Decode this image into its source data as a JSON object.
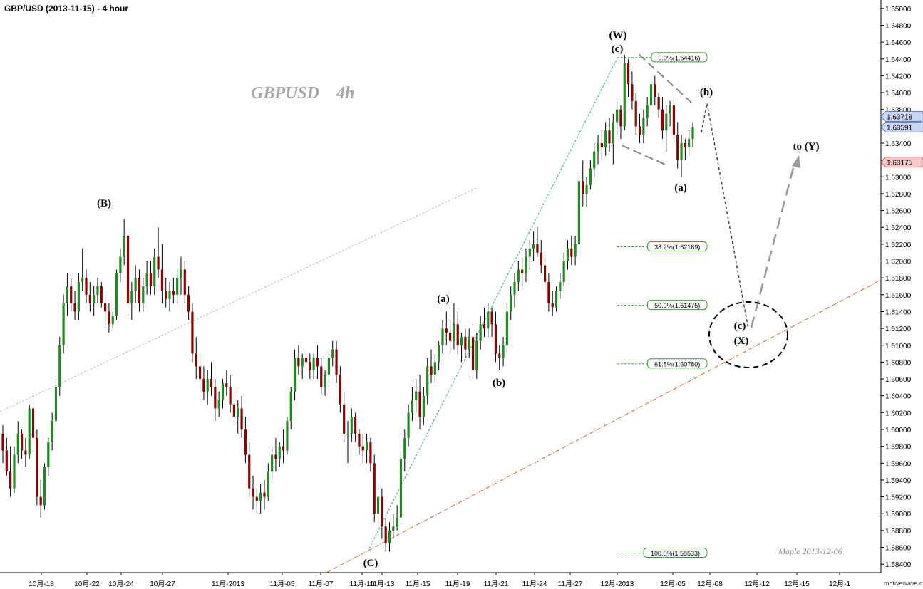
{
  "title": "GBP/USD (2013-11-15) - 4 hour",
  "watermark": "GBPUSD    4h",
  "signature": "Maple  2013-12-06",
  "brand": "motivewave.com",
  "colors": {
    "up": "#1f8c1f",
    "down": "#8b0000",
    "fib": "#2e9e2e",
    "channel": "#c8642a",
    "wick": "#000000"
  },
  "chart_data": {
    "type": "candlestick",
    "title": "GBP/USD (2013-11-15) - 4 hour",
    "y_axis": {
      "side": "right",
      "min": 1.583,
      "max": 1.651,
      "ticks": [
        "1.65000",
        "1.64800",
        "1.64600",
        "1.64400",
        "1.64200",
        "1.64000",
        "1.63800",
        "1.63600",
        "1.63400",
        "1.63200",
        "1.63000",
        "1.62800",
        "1.62600",
        "1.62400",
        "1.62200",
        "1.62000",
        "1.61800",
        "1.61600",
        "1.61400",
        "1.61200",
        "1.61000",
        "1.60800",
        "1.60600",
        "1.60400",
        "1.60200",
        "1.60000",
        "1.59800",
        "1.59600",
        "1.59400",
        "1.59200",
        "1.59000",
        "1.58800",
        "1.58600",
        "1.58400"
      ]
    },
    "x_axis": {
      "ticks": [
        "10月-18",
        "10月-22",
        "10月-24",
        "10月-27",
        "11月-2013",
        "11月-05",
        "11月-07",
        "11月-10",
        "11月-13",
        "11月-15",
        "11月-19",
        "11月-21",
        "11月-24",
        "11月-27",
        "12月-2013",
        "12月-05",
        "12月-08",
        "12月-12",
        "12月-15",
        "12月-1"
      ]
    },
    "price_tags": [
      {
        "value": "1.63718",
        "price": 1.63718,
        "style": "blue"
      },
      {
        "value": "1.63591",
        "price": 1.63591,
        "style": "blue"
      },
      {
        "value": "1.63175",
        "price": 1.63175,
        "style": "red"
      }
    ],
    "fibonacci": [
      {
        "label": "0.0%(1.64416)",
        "price": 1.64416
      },
      {
        "label": "38.2%(1.62169)",
        "price": 1.62169
      },
      {
        "label": "50.0%(1.61475)",
        "price": 1.61475
      },
      {
        "label": "61.8%(1.60780)",
        "price": 1.6078
      },
      {
        "label": "100.0%(1.58533)",
        "price": 1.58533
      }
    ],
    "wave_labels": [
      {
        "text": "(B)",
        "date": "10月-22",
        "price": 1.6268
      },
      {
        "text": "(C)",
        "date": "11月-13",
        "price": 1.5842
      },
      {
        "text": "(a)",
        "date": "11月-19",
        "price": 1.6157
      },
      {
        "text": "(b)",
        "date": "11月-21",
        "price": 1.6057
      },
      {
        "text": "(W)",
        "date": "12月-2013",
        "price": 1.6479
      },
      {
        "text": "(c)",
        "date": "12月-2013",
        "price": 1.6458
      },
      {
        "text": "(b)",
        "date": "12月-08",
        "price": 1.64
      },
      {
        "text": "(a)",
        "date": "12月-05",
        "price": 1.629
      },
      {
        "text": "(c)",
        "date": "12月-12",
        "price": 1.6124
      },
      {
        "text": "(X)",
        "date": "12月-12",
        "price": 1.6103
      },
      {
        "text": "to (Y)",
        "date": "12月-15",
        "price": 1.6337
      }
    ],
    "candles": [
      [
        1.5995,
        1.6005,
        1.596,
        1.5975
      ],
      [
        1.5975,
        1.599,
        1.5945,
        1.595
      ],
      [
        1.595,
        1.598,
        1.592,
        1.593
      ],
      [
        1.593,
        1.598,
        1.5925,
        1.597
      ],
      [
        1.597,
        1.601,
        1.596,
        1.5995
      ],
      [
        1.5995,
        1.6,
        1.5965,
        1.5975
      ],
      [
        1.5975,
        1.599,
        1.5955,
        1.597
      ],
      [
        1.597,
        1.603,
        1.5965,
        1.6025
      ],
      [
        1.6025,
        1.604,
        1.598,
        1.599
      ],
      [
        1.599,
        1.6,
        1.591,
        1.592
      ],
      [
        1.592,
        1.594,
        1.5895,
        1.591
      ],
      [
        1.591,
        1.596,
        1.5905,
        1.5955
      ],
      [
        1.5955,
        1.599,
        1.5945,
        1.5985
      ],
      [
        1.5985,
        1.602,
        1.5975,
        1.601
      ],
      [
        1.601,
        1.606,
        1.6,
        1.605
      ],
      [
        1.605,
        1.611,
        1.604,
        1.61
      ],
      [
        1.61,
        1.616,
        1.609,
        1.615
      ],
      [
        1.615,
        1.6185,
        1.6135,
        1.617
      ],
      [
        1.617,
        1.618,
        1.614,
        1.615
      ],
      [
        1.615,
        1.6165,
        1.613,
        1.614
      ],
      [
        1.614,
        1.6185,
        1.613,
        1.6175
      ],
      [
        1.6175,
        1.6215,
        1.6165,
        1.618
      ],
      [
        1.618,
        1.619,
        1.615,
        1.616
      ],
      [
        1.616,
        1.6175,
        1.614,
        1.615
      ],
      [
        1.615,
        1.617,
        1.6135,
        1.616
      ],
      [
        1.616,
        1.618,
        1.615,
        1.617
      ],
      [
        1.617,
        1.6175,
        1.6145,
        1.615
      ],
      [
        1.615,
        1.616,
        1.612,
        1.614
      ],
      [
        1.614,
        1.615,
        1.6115,
        1.6125
      ],
      [
        1.6125,
        1.614,
        1.612,
        1.6135
      ],
      [
        1.6135,
        1.619,
        1.613,
        1.6185
      ],
      [
        1.6185,
        1.6215,
        1.6175,
        1.6205
      ],
      [
        1.6205,
        1.625,
        1.6195,
        1.623
      ],
      [
        1.623,
        1.6235,
        1.6135,
        1.615
      ],
      [
        1.615,
        1.6175,
        1.613,
        1.6165
      ],
      [
        1.6165,
        1.6195,
        1.615,
        1.618
      ],
      [
        1.618,
        1.619,
        1.614,
        1.615
      ],
      [
        1.615,
        1.618,
        1.614,
        1.617
      ],
      [
        1.617,
        1.62,
        1.616,
        1.6185
      ],
      [
        1.6185,
        1.62,
        1.616,
        1.617
      ],
      [
        1.617,
        1.6215,
        1.616,
        1.6205
      ],
      [
        1.6205,
        1.624,
        1.618,
        1.619
      ],
      [
        1.619,
        1.622,
        1.615,
        1.6165
      ],
      [
        1.6165,
        1.618,
        1.6145,
        1.6155
      ],
      [
        1.6155,
        1.6175,
        1.614,
        1.6165
      ],
      [
        1.6165,
        1.618,
        1.615,
        1.616
      ],
      [
        1.616,
        1.619,
        1.615,
        1.618
      ],
      [
        1.618,
        1.6205,
        1.616,
        1.619
      ],
      [
        1.619,
        1.62,
        1.615,
        1.616
      ],
      [
        1.616,
        1.617,
        1.613,
        1.614
      ],
      [
        1.614,
        1.615,
        1.608,
        1.609
      ],
      [
        1.609,
        1.611,
        1.606,
        1.6075
      ],
      [
        1.6075,
        1.609,
        1.6045,
        1.606
      ],
      [
        1.606,
        1.6075,
        1.6035,
        1.6045
      ],
      [
        1.6045,
        1.607,
        1.603,
        1.606
      ],
      [
        1.606,
        1.608,
        1.604,
        1.605
      ],
      [
        1.605,
        1.606,
        1.601,
        1.6025
      ],
      [
        1.6025,
        1.6045,
        1.6015,
        1.6035
      ],
      [
        1.6035,
        1.606,
        1.6025,
        1.6055
      ],
      [
        1.6055,
        1.607,
        1.604,
        1.605
      ],
      [
        1.605,
        1.6065,
        1.602,
        1.603
      ],
      [
        1.603,
        1.6045,
        1.6005,
        1.6015
      ],
      [
        1.6015,
        1.6035,
        1.5995,
        1.6025
      ],
      [
        1.6025,
        1.604,
        1.599,
        1.6
      ],
      [
        1.6,
        1.6015,
        1.596,
        1.597
      ],
      [
        1.597,
        1.5985,
        1.592,
        1.593
      ],
      [
        1.593,
        1.5945,
        1.5905,
        1.592
      ],
      [
        1.592,
        1.593,
        1.59,
        1.5915
      ],
      [
        1.5915,
        1.5935,
        1.59,
        1.5925
      ],
      [
        1.5925,
        1.594,
        1.5905,
        1.592
      ],
      [
        1.592,
        1.596,
        1.5915,
        1.595
      ],
      [
        1.595,
        1.598,
        1.594,
        1.597
      ],
      [
        1.597,
        1.599,
        1.595,
        1.5965
      ],
      [
        1.5965,
        1.5985,
        1.5955,
        1.598
      ],
      [
        1.598,
        1.6,
        1.596,
        1.5975
      ],
      [
        1.5975,
        1.6015,
        1.597,
        1.601
      ],
      [
        1.601,
        1.605,
        1.6,
        1.6045
      ],
      [
        1.6045,
        1.6095,
        1.6035,
        1.6085
      ],
      [
        1.6085,
        1.61,
        1.6065,
        1.6075
      ],
      [
        1.6075,
        1.609,
        1.606,
        1.6085
      ],
      [
        1.6085,
        1.6095,
        1.607,
        1.608
      ],
      [
        1.608,
        1.609,
        1.606,
        1.607
      ],
      [
        1.607,
        1.609,
        1.606,
        1.6085
      ],
      [
        1.6085,
        1.61,
        1.606,
        1.6075
      ],
      [
        1.6075,
        1.6085,
        1.604,
        1.605
      ],
      [
        1.605,
        1.607,
        1.604,
        1.6065
      ],
      [
        1.6065,
        1.6095,
        1.6055,
        1.6085
      ],
      [
        1.6085,
        1.6105,
        1.6075,
        1.6095
      ],
      [
        1.6095,
        1.6105,
        1.6055,
        1.6065
      ],
      [
        1.6065,
        1.6075,
        1.602,
        1.603
      ],
      [
        1.603,
        1.6045,
        1.5985,
        1.5995
      ],
      [
        1.5995,
        1.601,
        1.596,
        1.5995
      ],
      [
        1.5995,
        1.6025,
        1.5985,
        1.6015
      ],
      [
        1.6015,
        1.602,
        1.5985,
        1.5995
      ],
      [
        1.5995,
        1.6,
        1.597,
        1.598
      ],
      [
        1.598,
        1.5995,
        1.596,
        1.5975
      ],
      [
        1.5975,
        1.5995,
        1.596,
        1.5985
      ],
      [
        1.5985,
        1.599,
        1.595,
        1.596
      ],
      [
        1.596,
        1.597,
        1.589,
        1.59
      ],
      [
        1.59,
        1.5935,
        1.588,
        1.592
      ],
      [
        1.592,
        1.593,
        1.587,
        1.5885
      ],
      [
        1.5885,
        1.5895,
        1.5855,
        1.5865
      ],
      [
        1.5865,
        1.589,
        1.5855,
        1.588
      ],
      [
        1.588,
        1.59,
        1.587,
        1.5885
      ],
      [
        1.5885,
        1.591,
        1.588,
        1.5895
      ],
      [
        1.5895,
        1.5975,
        1.589,
        1.5965
      ],
      [
        1.5965,
        1.6,
        1.595,
        1.599
      ],
      [
        1.599,
        1.603,
        1.598,
        1.602
      ],
      [
        1.602,
        1.605,
        1.601,
        1.6035
      ],
      [
        1.6035,
        1.606,
        1.602,
        1.6045
      ],
      [
        1.6045,
        1.6065,
        1.6,
        1.6015
      ],
      [
        1.6015,
        1.605,
        1.6005,
        1.604
      ],
      [
        1.604,
        1.6085,
        1.603,
        1.6075
      ],
      [
        1.6075,
        1.6095,
        1.6055,
        1.6065
      ],
      [
        1.6065,
        1.609,
        1.6055,
        1.608
      ],
      [
        1.608,
        1.6105,
        1.607,
        1.61
      ],
      [
        1.61,
        1.613,
        1.609,
        1.612
      ],
      [
        1.612,
        1.614,
        1.61,
        1.6115
      ],
      [
        1.6115,
        1.613,
        1.609,
        1.6105
      ],
      [
        1.6105,
        1.615,
        1.6095,
        1.6125
      ],
      [
        1.6125,
        1.614,
        1.609,
        1.61
      ],
      [
        1.61,
        1.6115,
        1.608,
        1.611
      ],
      [
        1.611,
        1.612,
        1.6085,
        1.6095
      ],
      [
        1.6095,
        1.612,
        1.6085,
        1.611
      ],
      [
        1.611,
        1.6125,
        1.606,
        1.607
      ],
      [
        1.607,
        1.6115,
        1.606,
        1.6105
      ],
      [
        1.6105,
        1.6135,
        1.6095,
        1.6125
      ],
      [
        1.6125,
        1.6145,
        1.611,
        1.612
      ],
      [
        1.612,
        1.615,
        1.611,
        1.614
      ],
      [
        1.614,
        1.6145,
        1.611,
        1.6125
      ],
      [
        1.6125,
        1.614,
        1.608,
        1.609
      ],
      [
        1.609,
        1.61,
        1.607,
        1.6085
      ],
      [
        1.6085,
        1.611,
        1.6075,
        1.61
      ],
      [
        1.61,
        1.615,
        1.609,
        1.614
      ],
      [
        1.614,
        1.617,
        1.613,
        1.616
      ],
      [
        1.616,
        1.6185,
        1.6145,
        1.6175
      ],
      [
        1.6175,
        1.62,
        1.6165,
        1.619
      ],
      [
        1.619,
        1.6205,
        1.617,
        1.6185
      ],
      [
        1.6185,
        1.6215,
        1.6175,
        1.6205
      ],
      [
        1.6205,
        1.6225,
        1.619,
        1.6215
      ],
      [
        1.6215,
        1.6235,
        1.62,
        1.622
      ],
      [
        1.622,
        1.624,
        1.6205,
        1.621
      ],
      [
        1.621,
        1.6225,
        1.6185,
        1.6195
      ],
      [
        1.6195,
        1.6205,
        1.6165,
        1.6175
      ],
      [
        1.6175,
        1.6185,
        1.614,
        1.615
      ],
      [
        1.615,
        1.6165,
        1.6135,
        1.6145
      ],
      [
        1.6145,
        1.617,
        1.614,
        1.6165
      ],
      [
        1.6165,
        1.6185,
        1.6155,
        1.6175
      ],
      [
        1.6175,
        1.621,
        1.617,
        1.62
      ],
      [
        1.62,
        1.6225,
        1.619,
        1.6215
      ],
      [
        1.6215,
        1.623,
        1.6195,
        1.6205
      ],
      [
        1.6205,
        1.623,
        1.6195,
        1.622
      ],
      [
        1.622,
        1.6305,
        1.621,
        1.6295
      ],
      [
        1.6295,
        1.632,
        1.6265,
        1.628
      ],
      [
        1.628,
        1.63,
        1.6265,
        1.629
      ],
      [
        1.629,
        1.632,
        1.6285,
        1.631
      ],
      [
        1.631,
        1.634,
        1.63,
        1.633
      ],
      [
        1.633,
        1.635,
        1.6315,
        1.634
      ],
      [
        1.634,
        1.6355,
        1.632,
        1.6335
      ],
      [
        1.6335,
        1.6365,
        1.6325,
        1.6355
      ],
      [
        1.6355,
        1.637,
        1.633,
        1.634
      ],
      [
        1.634,
        1.6375,
        1.6315,
        1.6365
      ],
      [
        1.6365,
        1.639,
        1.635,
        1.638
      ],
      [
        1.638,
        1.6385,
        1.6345,
        1.636
      ],
      [
        1.636,
        1.6445,
        1.6355,
        1.6435
      ],
      [
        1.6435,
        1.644,
        1.6395,
        1.641
      ],
      [
        1.641,
        1.6425,
        1.638,
        1.639
      ],
      [
        1.639,
        1.64,
        1.635,
        1.636
      ],
      [
        1.636,
        1.6375,
        1.634,
        1.635
      ],
      [
        1.635,
        1.638,
        1.634,
        1.637
      ],
      [
        1.637,
        1.6395,
        1.636,
        1.6385
      ],
      [
        1.6385,
        1.642,
        1.6375,
        1.641
      ],
      [
        1.641,
        1.642,
        1.6385,
        1.6395
      ],
      [
        1.6395,
        1.64,
        1.637,
        1.638
      ],
      [
        1.638,
        1.6395,
        1.6345,
        1.6355
      ],
      [
        1.6355,
        1.6385,
        1.633,
        1.6375
      ],
      [
        1.6375,
        1.639,
        1.636,
        1.6385
      ],
      [
        1.6385,
        1.6395,
        1.6345,
        1.635
      ],
      [
        1.635,
        1.6365,
        1.631,
        1.632
      ],
      [
        1.632,
        1.635,
        1.63,
        1.634
      ],
      [
        1.634,
        1.6345,
        1.632,
        1.6335
      ],
      [
        1.6335,
        1.6355,
        1.6325,
        1.6345
      ],
      [
        1.6345,
        1.6365,
        1.6335,
        1.6359
      ]
    ]
  }
}
